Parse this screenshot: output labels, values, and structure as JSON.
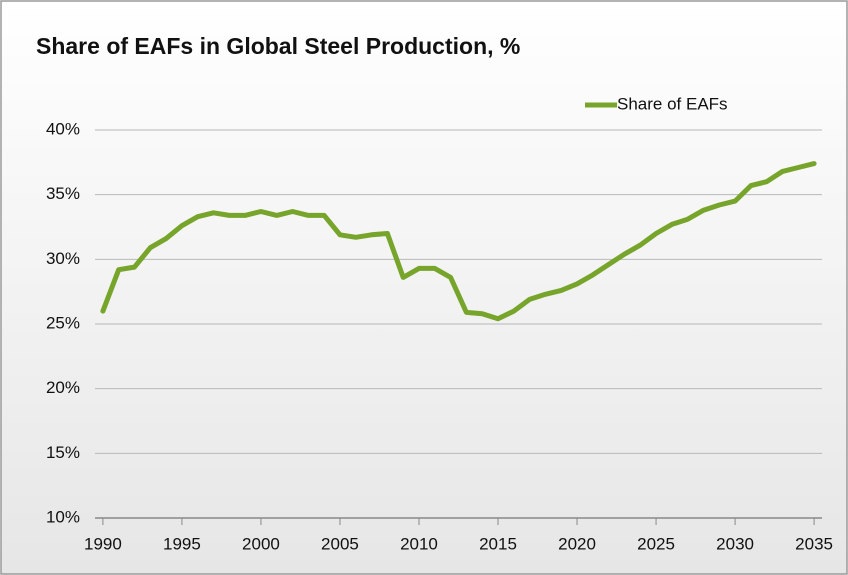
{
  "chart_data": {
    "type": "line",
    "title": "Share of EAFs in Global Steel Production, %",
    "x": [
      1990,
      1991,
      1992,
      1993,
      1994,
      1995,
      1996,
      1997,
      1998,
      1999,
      2000,
      2001,
      2002,
      2003,
      2004,
      2005,
      2006,
      2007,
      2008,
      2009,
      2010,
      2011,
      2012,
      2013,
      2014,
      2015,
      2016,
      2017,
      2018,
      2019,
      2020,
      2021,
      2022,
      2023,
      2024,
      2025,
      2026,
      2027,
      2028,
      2029,
      2030,
      2031,
      2032,
      2033,
      2034,
      2035
    ],
    "series": [
      {
        "name": "Share of EAFs",
        "color": "#77a42b",
        "values": [
          26.0,
          29.2,
          29.4,
          30.9,
          31.6,
          32.6,
          33.3,
          33.6,
          33.4,
          33.4,
          33.7,
          33.4,
          33.7,
          33.4,
          33.4,
          31.9,
          31.7,
          31.9,
          32.0,
          28.6,
          29.3,
          29.3,
          28.6,
          25.9,
          25.8,
          25.4,
          26.0,
          26.9,
          27.3,
          27.6,
          28.1,
          28.8,
          29.6,
          30.4,
          31.1,
          32.0,
          32.7,
          33.1,
          33.8,
          34.2,
          34.5,
          35.7,
          36.0,
          36.8,
          37.1,
          37.4
        ]
      }
    ],
    "xlim": [
      1989.5,
      2035.5
    ],
    "xticks": [
      1990,
      1995,
      2000,
      2005,
      2010,
      2015,
      2020,
      2025,
      2030,
      2035
    ],
    "ylim": [
      10,
      40
    ],
    "yticks": [
      {
        "value": 10,
        "label": "10%"
      },
      {
        "value": 15,
        "label": "15%"
      },
      {
        "value": 20,
        "label": "20%"
      },
      {
        "value": 25,
        "label": "25%"
      },
      {
        "value": 30,
        "label": "30%"
      },
      {
        "value": 35,
        "label": "35%"
      },
      {
        "value": 40,
        "label": "40%"
      }
    ],
    "grid": true,
    "legend": "top-right"
  }
}
